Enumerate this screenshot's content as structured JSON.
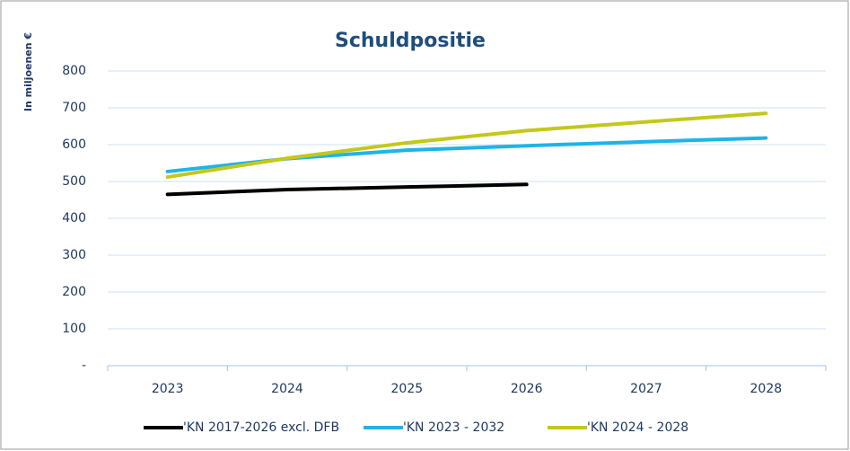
{
  "chart_data": {
    "type": "line",
    "title": "Schuldpositie",
    "y_label": "In miljoenen €",
    "categories": [
      "2023",
      "2024",
      "2025",
      "2026",
      "2027",
      "2028"
    ],
    "series": [
      {
        "name": "'KN 2017-2026 excl. DFB",
        "color": "#000000",
        "values": [
          465,
          478,
          485,
          492,
          null,
          null
        ]
      },
      {
        "name": "'KN 2023 - 2032",
        "color": "#1eb4e8",
        "values": [
          527,
          562,
          585,
          597,
          608,
          618
        ]
      },
      {
        "name": "'KN 2024 - 2028",
        "color": "#c3c81a",
        "values": [
          512,
          563,
          605,
          638,
          662,
          685
        ]
      }
    ],
    "ylim": [
      0,
      800
    ],
    "yticks": [
      {
        "value": 0,
        "label": "-"
      },
      100,
      200,
      300,
      400,
      500,
      600,
      700,
      800
    ],
    "grid": true,
    "legend": "bottom"
  }
}
